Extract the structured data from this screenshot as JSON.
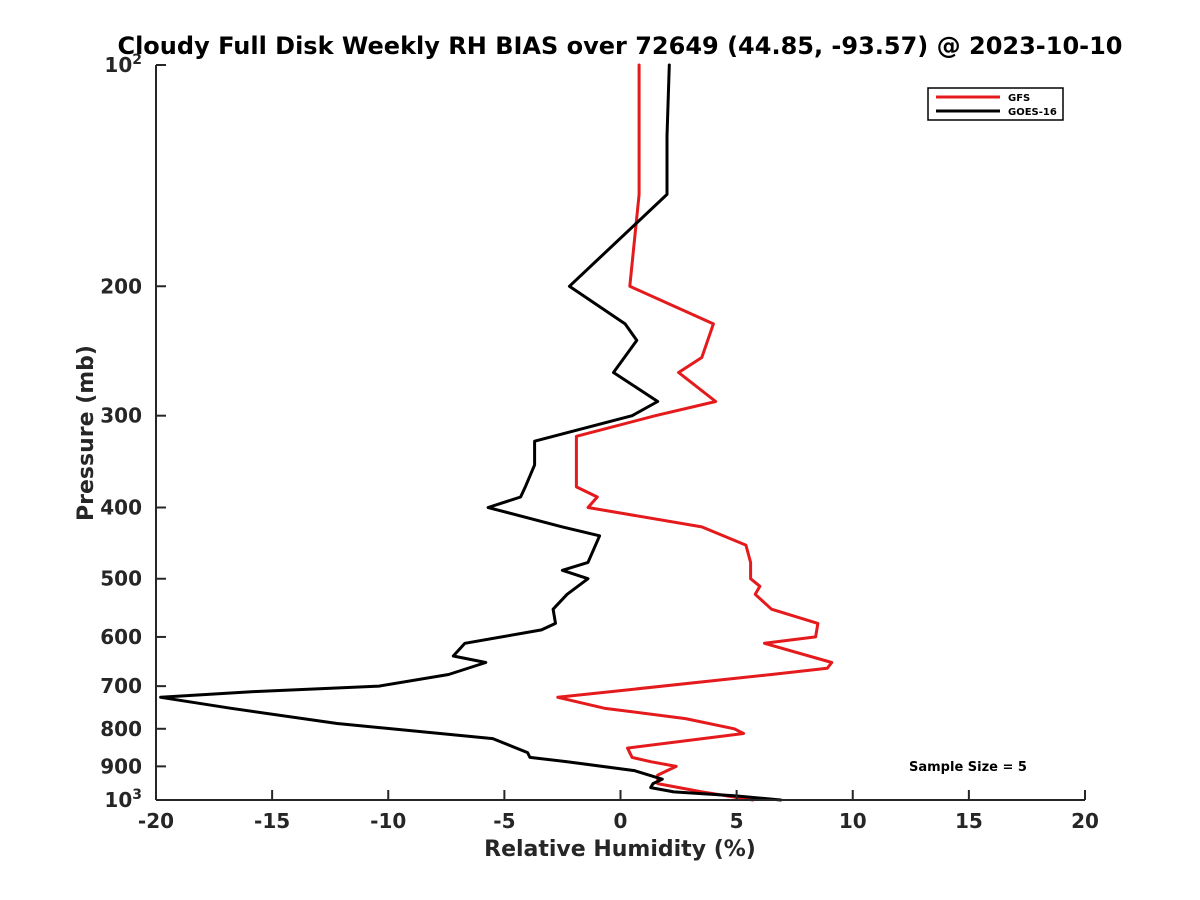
{
  "chart_data": {
    "type": "line",
    "title": "Cloudy Full Disk Weekly RH BIAS over 72649 (44.85, -93.57) @ 2023-10-10",
    "xlabel": "Relative Humidity (%)",
    "ylabel": "Pressure (mb)",
    "xlim": [
      -20,
      20
    ],
    "ylim": [
      100,
      1000
    ],
    "y_scale": "log",
    "y_reversed": true,
    "grid": false,
    "legend_position": "top-right",
    "x_ticks": [
      -20,
      -15,
      -10,
      -5,
      0,
      5,
      10,
      15,
      20
    ],
    "x_tick_labels": [
      "-20",
      "-15",
      "-10",
      "-5",
      "0",
      "5",
      "10",
      "15",
      "20"
    ],
    "y_ticks": [
      100,
      200,
      300,
      400,
      500,
      600,
      700,
      800,
      900,
      1000
    ],
    "y_tick_labels": [
      {
        "base": "10",
        "exp": "2"
      },
      {
        "base": "200",
        "exp": ""
      },
      {
        "base": "300",
        "exp": ""
      },
      {
        "base": "400",
        "exp": ""
      },
      {
        "base": "500",
        "exp": ""
      },
      {
        "base": "600",
        "exp": ""
      },
      {
        "base": "700",
        "exp": ""
      },
      {
        "base": "800",
        "exp": ""
      },
      {
        "base": "900",
        "exp": ""
      },
      {
        "base": "10",
        "exp": "3"
      }
    ],
    "annotation": "Sample Size = 5",
    "series": [
      {
        "name": "GFS",
        "color": "#e41a1c",
        "points": [
          [
            0.8,
            100
          ],
          [
            0.8,
            125
          ],
          [
            0.8,
            150
          ],
          [
            0.4,
            200
          ],
          [
            4.0,
            225
          ],
          [
            3.5,
            250
          ],
          [
            2.5,
            262
          ],
          [
            4.1,
            287
          ],
          [
            1.5,
            300
          ],
          [
            -1.9,
            320
          ],
          [
            -1.9,
            350
          ],
          [
            -1.9,
            375
          ],
          [
            -1.0,
            387
          ],
          [
            -1.4,
            400
          ],
          [
            3.5,
            425
          ],
          [
            5.4,
            450
          ],
          [
            5.6,
            475
          ],
          [
            5.6,
            500
          ],
          [
            6.0,
            512
          ],
          [
            5.8,
            525
          ],
          [
            6.5,
            550
          ],
          [
            8.5,
            575
          ],
          [
            8.4,
            600
          ],
          [
            6.2,
            612
          ],
          [
            9.1,
            650
          ],
          [
            8.9,
            662
          ],
          [
            6.5,
            675
          ],
          [
            -2.7,
            725
          ],
          [
            -0.7,
            750
          ],
          [
            2.8,
            775
          ],
          [
            4.9,
            800
          ],
          [
            5.3,
            812
          ],
          [
            0.3,
            850
          ],
          [
            0.5,
            875
          ],
          [
            1.3,
            887
          ],
          [
            2.4,
            900
          ],
          [
            1.6,
            925
          ],
          [
            1.6,
            950
          ],
          [
            3.5,
            975
          ],
          [
            5.7,
            1000
          ]
        ]
      },
      {
        "name": "GOES-16",
        "color": "#000000",
        "points": [
          [
            2.1,
            100
          ],
          [
            2.0,
            125
          ],
          [
            2.0,
            150
          ],
          [
            -2.2,
            200
          ],
          [
            0.2,
            225
          ],
          [
            0.7,
            237
          ],
          [
            -0.3,
            262
          ],
          [
            1.6,
            287
          ],
          [
            0.5,
            300
          ],
          [
            -3.7,
            325
          ],
          [
            -3.7,
            350
          ],
          [
            -4.1,
            375
          ],
          [
            -4.3,
            387
          ],
          [
            -5.7,
            400
          ],
          [
            -2.5,
            425
          ],
          [
            -0.9,
            437
          ],
          [
            -1.4,
            475
          ],
          [
            -2.5,
            487
          ],
          [
            -1.4,
            500
          ],
          [
            -2.3,
            525
          ],
          [
            -2.9,
            550
          ],
          [
            -2.8,
            575
          ],
          [
            -3.4,
            587
          ],
          [
            -6.7,
            612
          ],
          [
            -7.2,
            637
          ],
          [
            -5.8,
            650
          ],
          [
            -7.4,
            675
          ],
          [
            -10.4,
            700
          ],
          [
            -15.8,
            712
          ],
          [
            -19.8,
            725
          ],
          [
            -16.8,
            750
          ],
          [
            -12.2,
            787
          ],
          [
            -5.5,
            825
          ],
          [
            -4.0,
            862
          ],
          [
            -3.9,
            875
          ],
          [
            -2.3,
            887
          ],
          [
            0.6,
            912
          ],
          [
            1.8,
            937
          ],
          [
            1.4,
            950
          ],
          [
            1.3,
            962
          ],
          [
            2.3,
            975
          ],
          [
            4.9,
            987
          ],
          [
            6.9,
            1000
          ]
        ]
      }
    ]
  }
}
